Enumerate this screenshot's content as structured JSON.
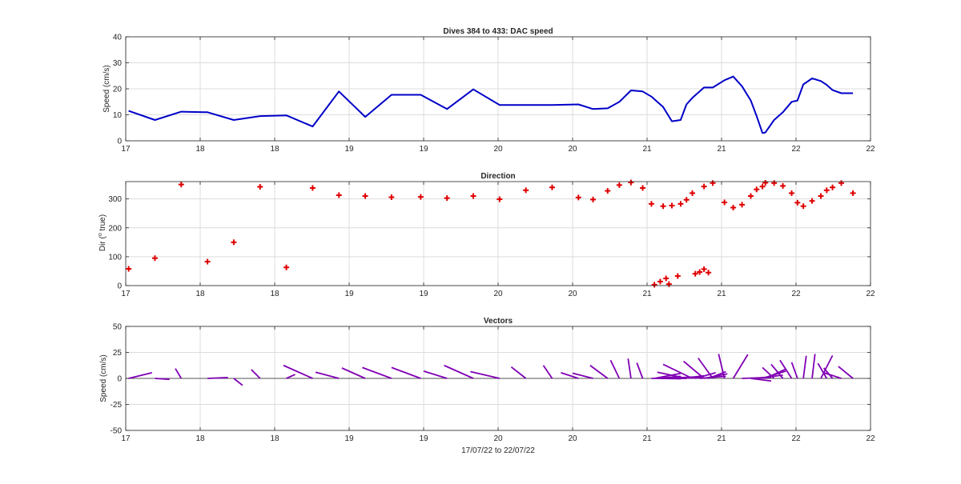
{
  "chart_data": [
    {
      "type": "line",
      "title": "Dives 384 to 433: DAC speed",
      "ylabel": "Speed (cm/s)",
      "xlabel": "",
      "xlim": [
        0,
        25.5
      ],
      "ylim": [
        0,
        40
      ],
      "x_tick_values": [
        0,
        2.55,
        5.1,
        7.65,
        10.2,
        12.75,
        15.3,
        17.85,
        20.4,
        22.95,
        25.5
      ],
      "x_tick_labels": [
        "17",
        "18",
        "18",
        "19",
        "19",
        "20",
        "20",
        "21",
        "21",
        "22",
        "22"
      ],
      "y_ticks": [
        0,
        10,
        20,
        30,
        40
      ],
      "grid": true,
      "color": "#0000c8",
      "series": [
        {
          "x": [
            0.1,
            1.0,
            1.9,
            2.8,
            3.7,
            4.6,
            5.5,
            6.4,
            7.3,
            8.2,
            9.1,
            10.1,
            11.0,
            11.9,
            12.8,
            13.7,
            14.6,
            15.5,
            16.0,
            16.5,
            16.9,
            17.3,
            17.7,
            18.0,
            18.4,
            18.7,
            19.0,
            19.2,
            19.4,
            19.8,
            20.1,
            20.5,
            20.8,
            21.1,
            21.4,
            21.6,
            21.8,
            21.9,
            22.2,
            22.5,
            22.8,
            23.0,
            23.2,
            23.5,
            23.8,
            24.0,
            24.2,
            24.5,
            24.9
          ],
          "y": [
            11.5,
            8,
            11.2,
            11,
            8,
            9.5,
            9.8,
            5.5,
            19,
            9.2,
            17.7,
            17.7,
            12.2,
            19.8,
            13.8,
            13.8,
            13.8,
            14,
            12.2,
            12.5,
            15,
            19.4,
            19,
            17,
            13,
            7.5,
            8,
            14,
            16.5,
            20.5,
            20.5,
            23.3,
            24.7,
            21,
            15.5,
            9.5,
            3,
            3.2,
            8,
            11,
            15,
            15.5,
            21.7,
            24,
            23,
            21.5,
            19.5,
            18.3,
            18.3
          ]
        }
      ]
    },
    {
      "type": "scatter",
      "title": "Direction",
      "ylabel": "Dir (o true)",
      "ylabel_parts": {
        "pre": "Dir (",
        "sup": "o",
        "post": " true)"
      },
      "xlabel": "",
      "xlim": [
        0,
        25.5
      ],
      "ylim": [
        0,
        360
      ],
      "x_tick_values": [
        0,
        2.55,
        5.1,
        7.65,
        10.2,
        12.75,
        15.3,
        17.85,
        20.4,
        22.95,
        25.5
      ],
      "x_tick_labels": [
        "17",
        "18",
        "18",
        "19",
        "19",
        "20",
        "20",
        "21",
        "21",
        "22",
        "22"
      ],
      "y_ticks": [
        0,
        100,
        200,
        300
      ],
      "grid": true,
      "color": "#e00000",
      "marker": "+",
      "series": [
        {
          "x": [
            0.1,
            1.0,
            1.9,
            2.8,
            3.7,
            4.6,
            5.5,
            6.4,
            7.3,
            8.2,
            9.1,
            10.1,
            11.0,
            11.9,
            12.8,
            13.7,
            14.6,
            15.5,
            16.0,
            16.5,
            16.9,
            17.3,
            17.7,
            18.0,
            18.4,
            18.7,
            19.0,
            19.2,
            19.4,
            19.8,
            20.1,
            20.5,
            20.8,
            21.1,
            21.4,
            21.6,
            21.8,
            21.9,
            22.2,
            22.5,
            22.8,
            23.0,
            23.2,
            23.5,
            23.8,
            24.0,
            24.2,
            24.5,
            24.9,
            18.6,
            18.1,
            18.3,
            18.5,
            18.9,
            19.5,
            19.65,
            19.8,
            19.95
          ],
          "y": [
            58,
            95,
            350,
            83,
            150,
            342,
            63,
            338,
            313,
            310,
            306,
            307,
            303,
            310,
            299,
            330,
            340,
            305,
            298,
            328,
            348,
            357,
            338,
            283,
            275,
            277,
            283,
            297,
            320,
            343,
            355,
            288,
            270,
            280,
            310,
            333,
            343,
            356,
            355,
            345,
            320,
            287,
            275,
            293,
            310,
            330,
            340,
            355,
            320,
            5,
            3,
            14,
            25,
            33,
            41,
            47,
            57,
            45
          ]
        }
      ]
    },
    {
      "type": "vector",
      "title": "Vectors",
      "ylabel": "Speed (cm/s)",
      "xlabel": "17/07/22 to 22/07/22",
      "xlim": [
        0,
        25.5
      ],
      "ylim": [
        -50,
        50
      ],
      "x_tick_values": [
        0,
        2.55,
        5.1,
        7.65,
        10.2,
        12.75,
        15.3,
        17.85,
        20.4,
        22.95,
        25.5
      ],
      "x_tick_labels": [
        "17",
        "18",
        "18",
        "19",
        "19",
        "20",
        "20",
        "21",
        "21",
        "22",
        "22"
      ],
      "y_ticks": [
        50,
        25,
        0,
        -25,
        -50
      ],
      "grid": true,
      "color": "#8000b4",
      "vectors": [
        {
          "x": 0.1,
          "u": 0.8,
          "v": 5.5
        },
        {
          "x": 1.0,
          "u": 0.5,
          "v": -0.9
        },
        {
          "x": 1.9,
          "u": -0.2,
          "v": 9.5
        },
        {
          "x": 2.8,
          "u": 0.7,
          "v": 0.8
        },
        {
          "x": 3.7,
          "u": 0.3,
          "v": -6.7
        },
        {
          "x": 4.6,
          "u": -0.3,
          "v": 8.5
        },
        {
          "x": 5.5,
          "u": 0.3,
          "v": 3.8
        },
        {
          "x": 6.4,
          "u": -1.0,
          "v": 12.5
        },
        {
          "x": 7.3,
          "u": -0.8,
          "v": 6.0
        },
        {
          "x": 8.2,
          "u": -0.8,
          "v": 10.0
        },
        {
          "x": 9.1,
          "u": -1.0,
          "v": 10.5
        },
        {
          "x": 10.1,
          "u": -1.0,
          "v": 10.5
        },
        {
          "x": 11.0,
          "u": -0.8,
          "v": 7.0
        },
        {
          "x": 11.9,
          "u": -1.0,
          "v": 12.5
        },
        {
          "x": 12.8,
          "u": -1.0,
          "v": 6.5
        },
        {
          "x": 13.7,
          "u": -0.5,
          "v": 11.0
        },
        {
          "x": 14.6,
          "u": -0.3,
          "v": 12.5
        },
        {
          "x": 15.5,
          "u": -0.6,
          "v": 5.5
        },
        {
          "x": 16.0,
          "u": -0.7,
          "v": 5.0
        },
        {
          "x": 16.5,
          "u": -0.6,
          "v": 12.5
        },
        {
          "x": 16.9,
          "u": -0.3,
          "v": 17.5
        },
        {
          "x": 17.3,
          "u": -0.1,
          "v": 19.0
        },
        {
          "x": 17.7,
          "u": -0.2,
          "v": 15.0
        },
        {
          "x": 18.0,
          "u": 0.8,
          "v": 0.2
        },
        {
          "x": 18.4,
          "u": 0.8,
          "v": 0.0
        },
        {
          "x": 18.7,
          "u": 0.9,
          "v": 0.6
        },
        {
          "x": 19.0,
          "u": 0.8,
          "v": 2.5
        },
        {
          "x": 19.2,
          "u": -1.0,
          "v": 6.0
        },
        {
          "x": 19.4,
          "u": -1.0,
          "v": 13.5
        },
        {
          "x": 19.8,
          "u": -0.7,
          "v": 16.5
        },
        {
          "x": 20.1,
          "u": -0.5,
          "v": 19.5
        },
        {
          "x": 20.5,
          "u": -0.2,
          "v": 23.5
        },
        {
          "x": 20.8,
          "u": 0.5,
          "v": 23.0
        },
        {
          "x": 21.1,
          "u": 1.0,
          "v": 1.0
        },
        {
          "x": 21.4,
          "u": 0.7,
          "v": -2.5
        },
        {
          "x": 21.6,
          "u": 0.9,
          "v": 3.2
        },
        {
          "x": 21.8,
          "u": 0.8,
          "v": 7.0
        },
        {
          "x": 21.9,
          "u": 0.7,
          "v": 9.0
        },
        {
          "x": 22.2,
          "u": -0.4,
          "v": 10.5
        },
        {
          "x": 22.5,
          "u": -0.4,
          "v": 13.5
        },
        {
          "x": 22.8,
          "u": -0.4,
          "v": 17.5
        },
        {
          "x": 23.0,
          "u": -0.2,
          "v": 15.5
        },
        {
          "x": 23.2,
          "u": 0.1,
          "v": 21.7
        },
        {
          "x": 23.5,
          "u": 0.1,
          "v": 23.5
        },
        {
          "x": 23.8,
          "u": 0.4,
          "v": 22.0
        },
        {
          "x": 24.0,
          "u": -0.3,
          "v": 14.5
        },
        {
          "x": 24.2,
          "u": -0.3,
          "v": 10.0
        },
        {
          "x": 24.5,
          "u": -0.6,
          "v": 5.5
        },
        {
          "x": 24.9,
          "u": -0.5,
          "v": 11.5
        },
        {
          "x": 18.1,
          "u": 0.9,
          "v": 4.8
        },
        {
          "x": 18.2,
          "u": 0.8,
          "v": 2.0
        },
        {
          "x": 18.3,
          "u": 0.7,
          "v": -0.4
        },
        {
          "x": 18.5,
          "u": 0.9,
          "v": 1.3
        },
        {
          "x": 19.5,
          "u": 0.7,
          "v": 5.5
        },
        {
          "x": 19.65,
          "u": 0.9,
          "v": 2.0
        },
        {
          "x": 19.8,
          "u": 0.8,
          "v": 4.4
        },
        {
          "x": 19.95,
          "u": 0.6,
          "v": 6.5
        }
      ]
    }
  ]
}
